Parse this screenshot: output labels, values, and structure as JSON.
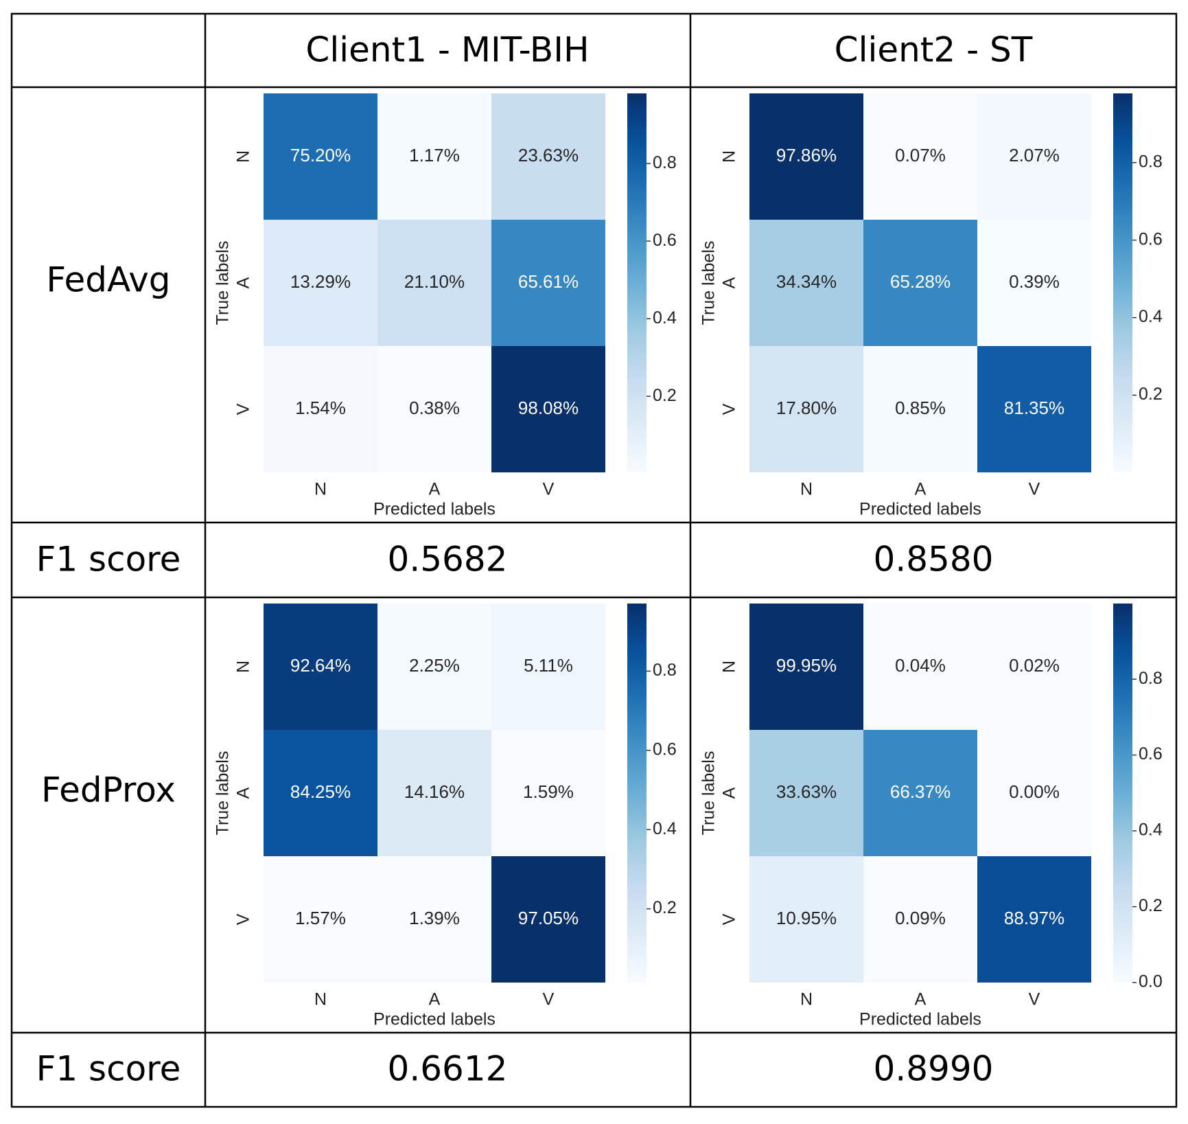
{
  "table": {
    "columns": [
      "Client1 - MIT-BIH",
      "Client2 - ST"
    ],
    "rows": [
      {
        "label": "FedAvg"
      },
      {
        "label": "F1 score",
        "values": [
          "0.5682",
          "0.8580"
        ]
      },
      {
        "label": "FedProx"
      },
      {
        "label": "F1 score",
        "values": [
          "0.6612",
          "0.8990"
        ]
      }
    ]
  },
  "chart_data": [
    {
      "type": "heatmap",
      "x_categories": [
        "N",
        "A",
        "V"
      ],
      "y_categories": [
        "N",
        "A",
        "V"
      ],
      "xlabel": "Predicted labels",
      "ylabel": "True labels",
      "values": [
        [
          0.752,
          0.0117,
          0.2363
        ],
        [
          0.1329,
          0.211,
          0.6561
        ],
        [
          0.0154,
          0.0038,
          0.9808
        ]
      ],
      "value_labels": [
        [
          "75.20%",
          "1.17%",
          "23.63%"
        ],
        [
          "13.29%",
          "21.10%",
          "65.61%"
        ],
        [
          "1.54%",
          "0.38%",
          "98.08%"
        ]
      ],
      "cmap": "Blues",
      "clim": [
        0.0038,
        0.9808
      ],
      "cticks": [
        0.2,
        0.4,
        0.6,
        0.8
      ]
    },
    {
      "type": "heatmap",
      "x_categories": [
        "N",
        "A",
        "V"
      ],
      "y_categories": [
        "N",
        "A",
        "V"
      ],
      "xlabel": "Predicted labels",
      "ylabel": "True labels",
      "values": [
        [
          0.9786,
          0.0007,
          0.0207
        ],
        [
          0.3434,
          0.6528,
          0.0039
        ],
        [
          0.178,
          0.0085,
          0.8135
        ]
      ],
      "value_labels": [
        [
          "97.86%",
          "0.07%",
          "2.07%"
        ],
        [
          "34.34%",
          "65.28%",
          "0.39%"
        ],
        [
          "17.80%",
          "0.85%",
          "81.35%"
        ]
      ],
      "cmap": "Blues",
      "clim": [
        0.0007,
        0.9786
      ],
      "cticks": [
        0.2,
        0.4,
        0.6,
        0.8
      ]
    },
    {
      "type": "heatmap",
      "x_categories": [
        "N",
        "A",
        "V"
      ],
      "y_categories": [
        "N",
        "A",
        "V"
      ],
      "xlabel": "Predicted labels",
      "ylabel": "True labels",
      "values": [
        [
          0.9264,
          0.0225,
          0.0511
        ],
        [
          0.8425,
          0.1416,
          0.0159
        ],
        [
          0.0157,
          0.0139,
          0.9705
        ]
      ],
      "value_labels": [
        [
          "92.64%",
          "2.25%",
          "5.11%"
        ],
        [
          "84.25%",
          "14.16%",
          "1.59%"
        ],
        [
          "1.57%",
          "1.39%",
          "97.05%"
        ]
      ],
      "cmap": "Blues",
      "clim": [
        0.0139,
        0.9705
      ],
      "cticks": [
        0.2,
        0.4,
        0.6,
        0.8
      ]
    },
    {
      "type": "heatmap",
      "x_categories": [
        "N",
        "A",
        "V"
      ],
      "y_categories": [
        "N",
        "A",
        "V"
      ],
      "xlabel": "Predicted labels",
      "ylabel": "True labels",
      "values": [
        [
          0.9995,
          0.0004,
          0.0002
        ],
        [
          0.3363,
          0.6637,
          0
        ],
        [
          0.1095,
          0.0009,
          0.8897
        ]
      ],
      "value_labels": [
        [
          "99.95%",
          "0.04%",
          "0.02%"
        ],
        [
          "33.63%",
          "66.37%",
          "0.00%"
        ],
        [
          "10.95%",
          "0.09%",
          "88.97%"
        ]
      ],
      "cmap": "Blues",
      "clim": [
        0,
        0.9995
      ],
      "cticks": [
        {
          "value": 0,
          "label": "0.0"
        },
        0.2,
        0.4,
        0.6,
        0.8
      ]
    }
  ]
}
